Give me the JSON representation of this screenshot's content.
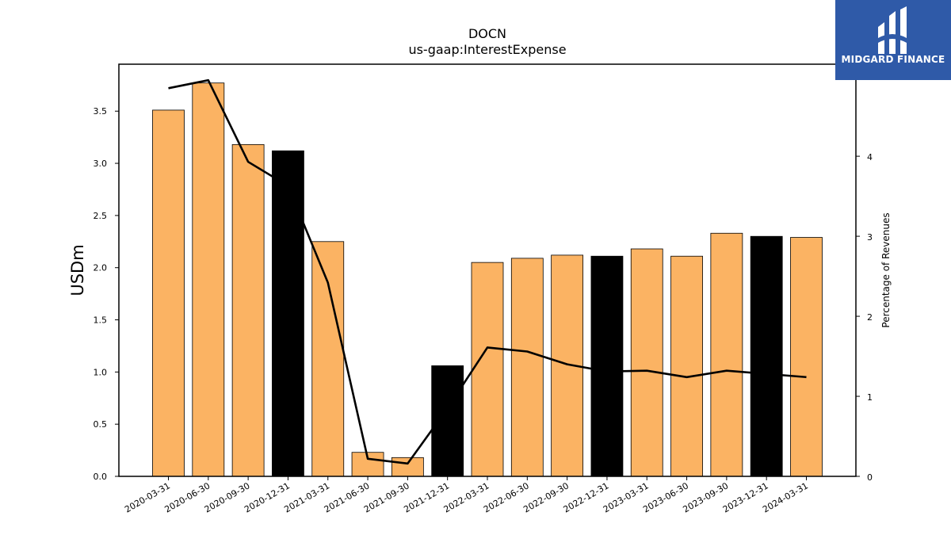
{
  "logo": {
    "text": "MIDGARD FINANCE",
    "color": "#2f5aa8"
  },
  "chart_data": {
    "type": "bar",
    "title": "DOCN",
    "subtitle": "us-gaap:InterestExpense",
    "ylabel": "USDm",
    "y2label": "Percentage of Revenues",
    "categories": [
      "2020-03-31",
      "2020-06-30",
      "2020-09-30",
      "2020-12-31",
      "2021-03-31",
      "2021-06-30",
      "2021-09-30",
      "2021-12-31",
      "2022-03-31",
      "2022-06-30",
      "2022-09-30",
      "2022-12-31",
      "2023-03-31",
      "2023-06-30",
      "2023-09-30",
      "2023-12-31",
      "2024-03-31"
    ],
    "values": [
      3.51,
      3.77,
      3.18,
      3.12,
      2.25,
      0.23,
      0.18,
      1.06,
      2.05,
      2.09,
      2.12,
      2.11,
      2.18,
      2.11,
      2.33,
      2.3,
      2.29
    ],
    "bar_colors": [
      "#fbb363",
      "#fbb363",
      "#fbb363",
      "#000000",
      "#fbb363",
      "#fbb363",
      "#fbb363",
      "#000000",
      "#fbb363",
      "#fbb363",
      "#fbb363",
      "#000000",
      "#fbb363",
      "#fbb363",
      "#fbb363",
      "#000000",
      "#fbb363"
    ],
    "line_series": {
      "values": [
        4.85,
        4.95,
        3.93,
        3.63,
        2.42,
        0.22,
        0.16,
        0.85,
        1.61,
        1.56,
        1.4,
        1.31,
        1.32,
        1.24,
        1.32,
        1.28,
        1.24
      ],
      "color": "#000000"
    },
    "ylim": [
      0,
      3.95
    ],
    "y2lim": [
      0,
      5.15
    ],
    "yticks": [
      0.0,
      0.5,
      1.0,
      1.5,
      2.0,
      2.5,
      3.0,
      3.5
    ],
    "ytick_labels": [
      "0.0",
      "0.5",
      "1.0",
      "1.5",
      "2.0",
      "2.5",
      "3.0",
      "3.5"
    ],
    "y2ticks": [
      0,
      1,
      2,
      3,
      4,
      5
    ],
    "y2tick_labels": [
      "0",
      "1",
      "2",
      "3",
      "4",
      "5"
    ],
    "grid": false,
    "legend": "none"
  }
}
